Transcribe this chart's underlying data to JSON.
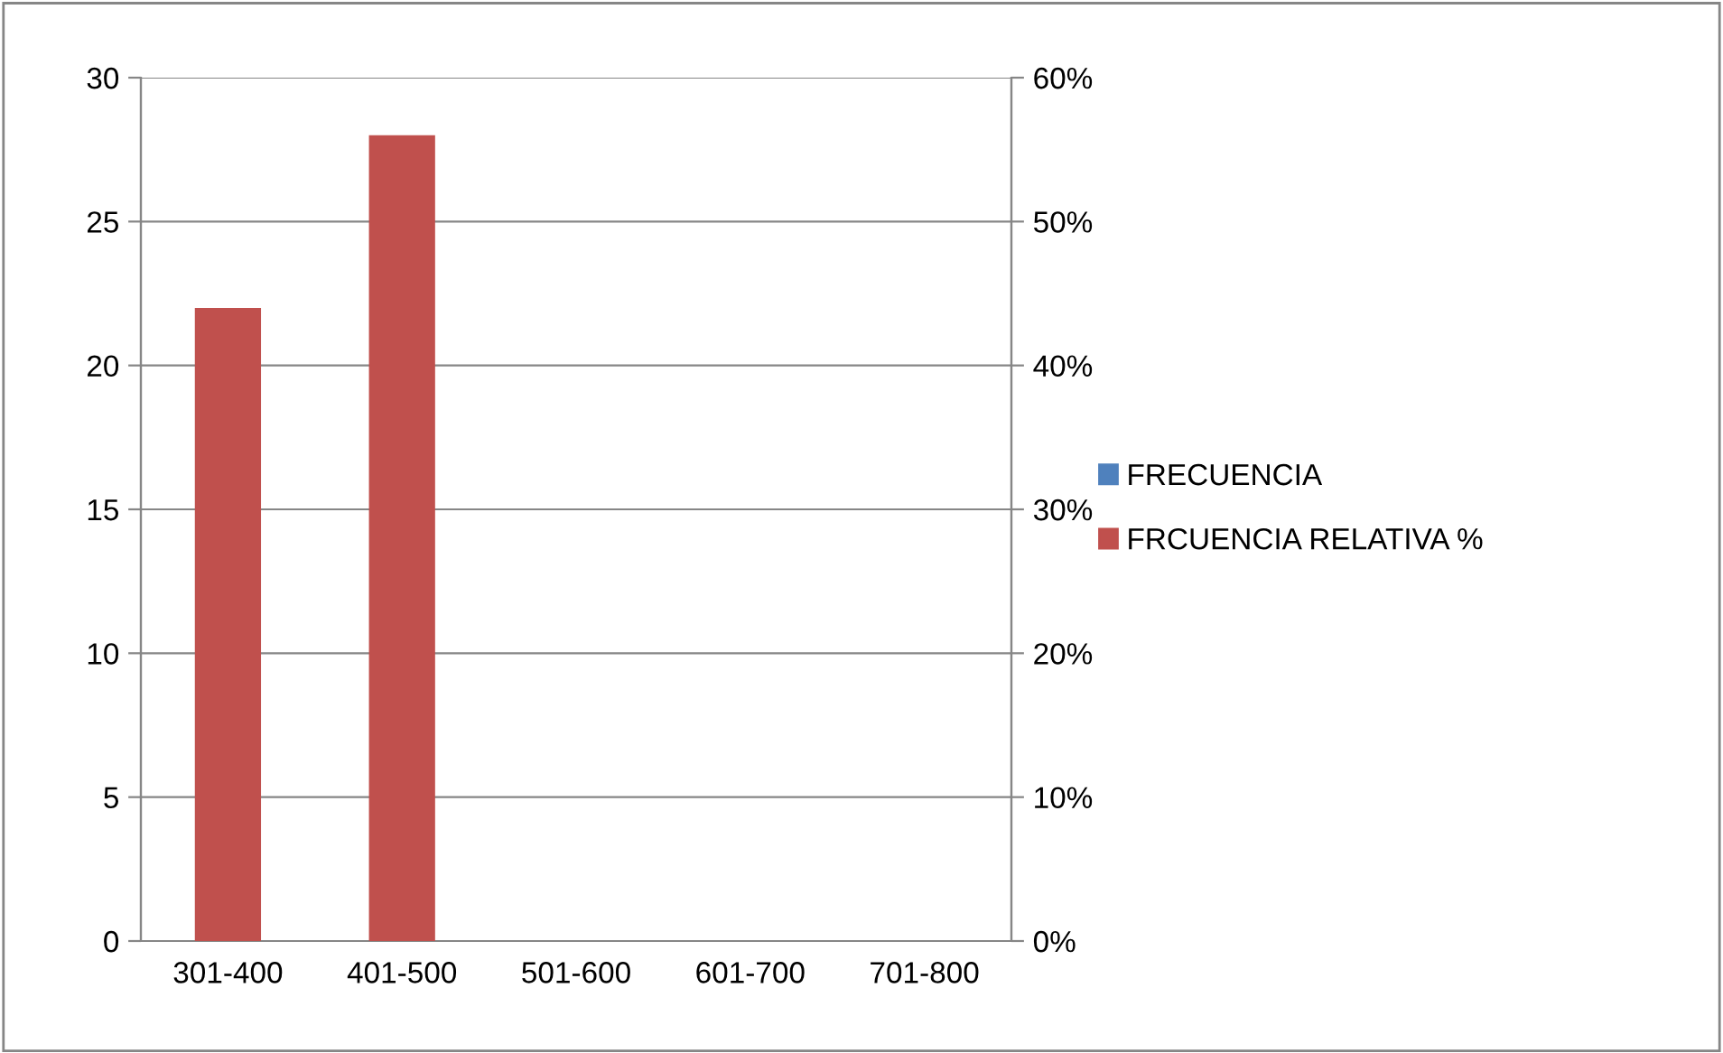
{
  "chart_data": {
    "type": "bar",
    "categories": [
      "301-400",
      "401-500",
      "501-600",
      "601-700",
      "701-800"
    ],
    "series": [
      {
        "name": "FRECUENCIA",
        "color": "#4f81bd",
        "values": [
          null,
          null,
          0,
          0,
          0
        ]
      },
      {
        "name": "FRCUENCIA RELATIVA %",
        "color": "#c0504d",
        "values": [
          44,
          56,
          0,
          0,
          0
        ],
        "axis": "y2"
      }
    ],
    "ylim": [
      0,
      30
    ],
    "yticks": [
      0,
      5,
      10,
      15,
      20,
      25,
      30
    ],
    "y2lim": [
      0,
      60
    ],
    "y2ticks": [
      {
        "value": 0,
        "label": "0%"
      },
      {
        "value": 10,
        "label": "10%"
      },
      {
        "value": 20,
        "label": "20%"
      },
      {
        "value": 30,
        "label": "30%"
      },
      {
        "value": 40,
        "label": "40%"
      },
      {
        "value": 50,
        "label": "50%"
      },
      {
        "value": 60,
        "label": "60%"
      }
    ],
    "grid": "y",
    "legend": "right"
  }
}
